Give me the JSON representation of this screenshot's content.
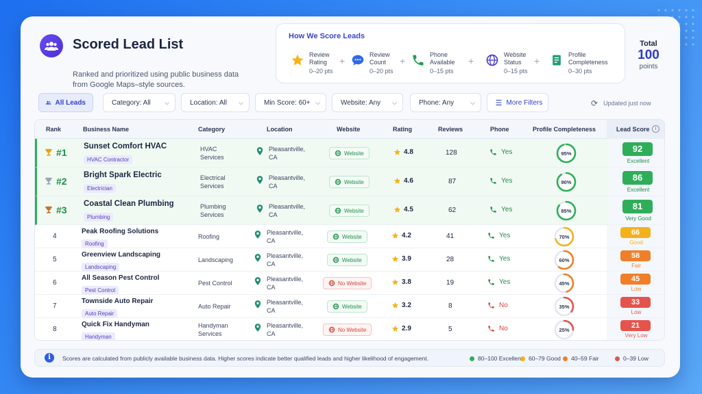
{
  "header": {
    "title": "Scored Lead List",
    "subtitle": "Ranked and prioritized using public business data from Google Maps–style sources."
  },
  "scoring": {
    "title": "How We Score Leads",
    "factors": [
      {
        "label1": "Review",
        "label2": "Rating",
        "points": "0–20 pts",
        "icon": "star-icon"
      },
      {
        "label1": "Review",
        "label2": "Count",
        "points": "0–20 pts",
        "icon": "chat-bubble-icon"
      },
      {
        "label1": "Phone",
        "label2": "Available",
        "points": "0–15 pts",
        "icon": "phone-icon"
      },
      {
        "label1": "Website",
        "label2": "Status",
        "points": "0–15 pts",
        "icon": "globe-icon"
      },
      {
        "label1": "Profile",
        "label2": "Completeness",
        "points": "0–30 pts",
        "icon": "document-icon"
      }
    ],
    "total_label": "Total",
    "total_value": "100",
    "total_unit": "points"
  },
  "filters": {
    "all_leads": "All Leads",
    "category": "Category: All",
    "location": "Location: All",
    "min_score": "Min Score: 60+",
    "website": "Website: Any",
    "phone": "Phone: Any",
    "more": "More Filters",
    "updated": "Updated just now"
  },
  "columns": {
    "rank": "Rank",
    "name": "Business Name",
    "category": "Category",
    "location": "Location",
    "website": "Website",
    "rating": "Rating",
    "reviews": "Reviews",
    "phone": "Phone",
    "profile": "Profile Completeness",
    "score": "Lead Score"
  },
  "colors": {
    "excellent": "#2fae5a",
    "good": "#f3b21c",
    "fair": "#f07f2a",
    "low": "#e4544c"
  },
  "rows": [
    {
      "rank": "#1",
      "trophy": "gold",
      "name": "Sunset Comfort HVAC",
      "tag": "HVAC Contractor",
      "cat1": "HVAC",
      "cat2": "Services",
      "loc1": "Pleasantville,",
      "loc2": "CA",
      "website": "Website",
      "has_website": true,
      "rating": "4.8",
      "reviews": "128",
      "phone": "Yes",
      "has_phone": true,
      "profile_pct": 95,
      "profile": "95%",
      "score": "92",
      "score_label": "Excellent",
      "tier": "excellent"
    },
    {
      "rank": "#2",
      "trophy": "silver",
      "name": "Bright Spark Electric",
      "tag": "Electrician",
      "cat1": "Electrical",
      "cat2": "Services",
      "loc1": "Pleasantville,",
      "loc2": "CA",
      "website": "Website",
      "has_website": true,
      "rating": "4.6",
      "reviews": "87",
      "phone": "Yes",
      "has_phone": true,
      "profile_pct": 90,
      "profile": "90%",
      "score": "86",
      "score_label": "Excellent",
      "tier": "excellent"
    },
    {
      "rank": "#3",
      "trophy": "bronze",
      "name": "Coastal Clean Plumbing",
      "tag": "Plumbing",
      "cat1": "Plumbing",
      "cat2": "Services",
      "loc1": "Pleasantville,",
      "loc2": "CA",
      "website": "Website",
      "has_website": true,
      "rating": "4.5",
      "reviews": "62",
      "phone": "Yes",
      "has_phone": true,
      "profile_pct": 85,
      "profile": "85%",
      "score": "81",
      "score_label": "Very Good",
      "tier": "excellent"
    },
    {
      "rank": "4",
      "name": "Peak Roofing Solutions",
      "tag": "Roofing",
      "cat1": "Roofing",
      "cat2": "",
      "loc1": "Pleasantville,",
      "loc2": "CA",
      "website": "Website",
      "has_website": true,
      "rating": "4.2",
      "reviews": "41",
      "phone": "Yes",
      "has_phone": true,
      "profile_pct": 70,
      "profile": "70%",
      "score": "66",
      "score_label": "Good",
      "tier": "good"
    },
    {
      "rank": "5",
      "name": "Greenview Landscaping",
      "tag": "Landscaping",
      "cat1": "Landscaping",
      "cat2": "",
      "loc1": "Pleasantville,",
      "loc2": "CA",
      "website": "Website",
      "has_website": true,
      "rating": "3.9",
      "reviews": "28",
      "phone": "Yes",
      "has_phone": true,
      "profile_pct": 60,
      "profile": "60%",
      "score": "58",
      "score_label": "Fair",
      "tier": "fair"
    },
    {
      "rank": "6",
      "name": "All Season Pest Control",
      "tag": "Pest Control",
      "cat1": "Pest Control",
      "cat2": "",
      "loc1": "Pleasantville,",
      "loc2": "CA",
      "website": "No Website",
      "has_website": false,
      "rating": "3.8",
      "reviews": "19",
      "phone": "Yes",
      "has_phone": true,
      "profile_pct": 45,
      "profile": "45%",
      "score": "45",
      "score_label": "Low",
      "tier": "fair"
    },
    {
      "rank": "7",
      "name": "Townside Auto Repair",
      "tag": "Auto Repair",
      "cat1": "Auto Repair",
      "cat2": "",
      "loc1": "Pleasantville,",
      "loc2": "CA",
      "website": "Website",
      "has_website": true,
      "rating": "3.2",
      "reviews": "8",
      "phone": "No",
      "has_phone": false,
      "profile_pct": 35,
      "profile": "35%",
      "score": "33",
      "score_label": "Low",
      "tier": "low"
    },
    {
      "rank": "8",
      "name": "Quick Fix Handyman",
      "tag": "Handyman",
      "cat1": "Handyman",
      "cat2": "Services",
      "loc1": "Pleasantville,",
      "loc2": "CA",
      "website": "No Website",
      "has_website": false,
      "rating": "2.9",
      "reviews": "5",
      "phone": "No",
      "has_phone": false,
      "profile_pct": 25,
      "profile": "25%",
      "score": "21",
      "score_label": "Very Low",
      "tier": "low"
    }
  ],
  "footer": {
    "note": "Scores are calculated from publicly available business data. Higher scores indicate better qualified leads and higher likelihood of engagement.",
    "legend": [
      {
        "label": "80–100 Excellent",
        "tier": "excellent"
      },
      {
        "label": "60–79 Good",
        "tier": "good"
      },
      {
        "label": "40–59 Fair",
        "tier": "fair"
      },
      {
        "label": "0–39 Low",
        "tier": "low"
      }
    ]
  }
}
